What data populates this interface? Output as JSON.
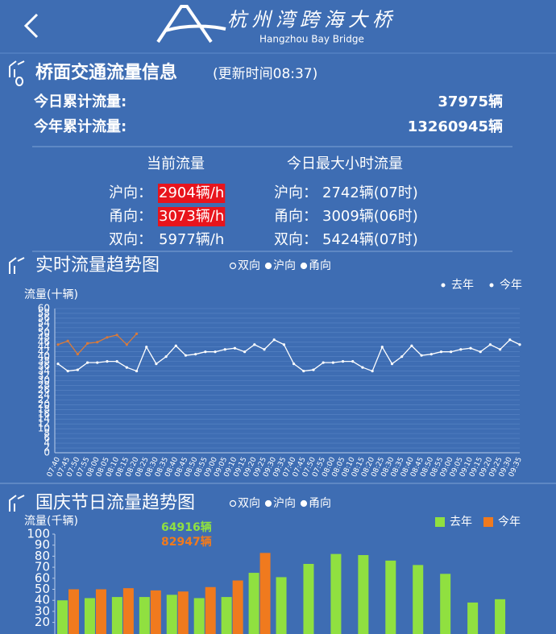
{
  "header": {
    "title": "杭州湾跨海大桥",
    "subtitle": "Hangzhou Bay Bridge"
  },
  "info": {
    "title": "桥面交通流量信息",
    "update": "(更新时间08:37)",
    "today": {
      "label": "今日累计流量:",
      "value": "37975辆"
    },
    "year": {
      "label": "今年累计流量:",
      "value": "13260945辆"
    },
    "current": {
      "title": "当前流量",
      "rows": [
        {
          "dir": "沪向：",
          "value": "2904辆/h",
          "alert": true
        },
        {
          "dir": "甬向：",
          "value": "3073辆/h",
          "alert": true
        },
        {
          "dir": "双向：",
          "value": "5977辆/h",
          "alert": false
        }
      ]
    },
    "max": {
      "title": "今日最大小时流量",
      "rows": [
        {
          "dir": "沪向：",
          "value": "2742辆(07时)"
        },
        {
          "dir": "甬向：",
          "value": "3009辆(06时)"
        },
        {
          "dir": "双向：",
          "value": "5424辆(07时)"
        }
      ]
    }
  },
  "chart_data": [
    {
      "type": "line",
      "title": "实时流量趋势图",
      "filters": [
        "双向",
        "沪向",
        "甬向"
      ],
      "ylabel": "流量(十辆)",
      "categories": [
        "07:40",
        "07:45",
        "07:50",
        "07:55",
        "08:00",
        "08:05",
        "08:10",
        "08:15",
        "08:20",
        "08:25",
        "08:30",
        "08:35",
        "08:40",
        "08:45",
        "08:50",
        "08:55",
        "09:00",
        "09:05",
        "09:10",
        "09:15",
        "09:20",
        "09:25",
        "09:30",
        "09:35",
        "07:40",
        "07:45",
        "07:50",
        "07:55",
        "08:00",
        "08:05",
        "08:10",
        "08:15",
        "08:20",
        "08:25",
        "08:30",
        "08:35",
        "08:40",
        "08:45",
        "08:50",
        "08:55",
        "09:00",
        "09:05",
        "09:10",
        "09:15",
        "09:20",
        "09:25",
        "09:30",
        "09:35"
      ],
      "series": [
        {
          "name": "去年",
          "color": "#ffffff",
          "values": [
            37,
            34,
            34.5,
            37.5,
            37.5,
            38,
            38,
            35.5,
            34,
            44,
            37,
            40,
            44.5,
            40.5,
            41,
            42,
            42,
            43,
            43.5,
            42,
            45,
            43,
            47,
            45,
            37,
            34,
            34.5,
            37.5,
            37.5,
            38,
            38,
            35.5,
            34,
            44,
            37,
            40,
            44.5,
            40.5,
            41,
            42,
            42,
            43,
            43.5,
            42,
            45,
            43,
            47,
            45
          ]
        },
        {
          "name": "今年",
          "color": "#d97a3a",
          "values": [
            45,
            46.5,
            41,
            45.5,
            46,
            48,
            49,
            45,
            49.5,
            null,
            null,
            null,
            null,
            null,
            null,
            null,
            null,
            null,
            null,
            null,
            null,
            null,
            null,
            null,
            null,
            null,
            null,
            null,
            null,
            null,
            null,
            null,
            null,
            null,
            null,
            null,
            null,
            null,
            null,
            null,
            null,
            null,
            null,
            null,
            null,
            null,
            null,
            null
          ]
        }
      ],
      "ylim": [
        0,
        60
      ],
      "yticks": [
        0,
        2,
        4,
        6,
        8,
        10,
        12,
        14,
        16,
        18,
        20,
        22,
        24,
        26,
        28,
        30,
        32,
        34,
        36,
        38,
        40,
        42,
        44,
        46,
        48,
        50,
        52,
        54,
        56,
        58,
        60
      ],
      "grid": true
    },
    {
      "type": "bar",
      "title": "国庆节日流量趋势图",
      "filters": [
        "双向",
        "沪向",
        "甬向"
      ],
      "ylabel": "流量(千辆)",
      "series": [
        {
          "name": "去年",
          "color": "#90e040",
          "values": [
            40,
            42,
            43,
            43,
            45,
            42,
            43,
            64.916,
            61,
            73,
            82,
            81,
            76,
            72,
            64,
            38,
            41
          ]
        },
        {
          "name": "今年",
          "color": "#f07a1e",
          "values": [
            50,
            50,
            51,
            49,
            48,
            52,
            58,
            82.947,
            null,
            null,
            null,
            null,
            null,
            null,
            null,
            null,
            null
          ]
        }
      ],
      "annotations": [
        "64916辆",
        "82947辆"
      ],
      "ylim": [
        0,
        100
      ],
      "yticks": [
        20,
        30,
        40,
        50,
        60,
        70,
        80,
        90,
        100
      ]
    }
  ]
}
